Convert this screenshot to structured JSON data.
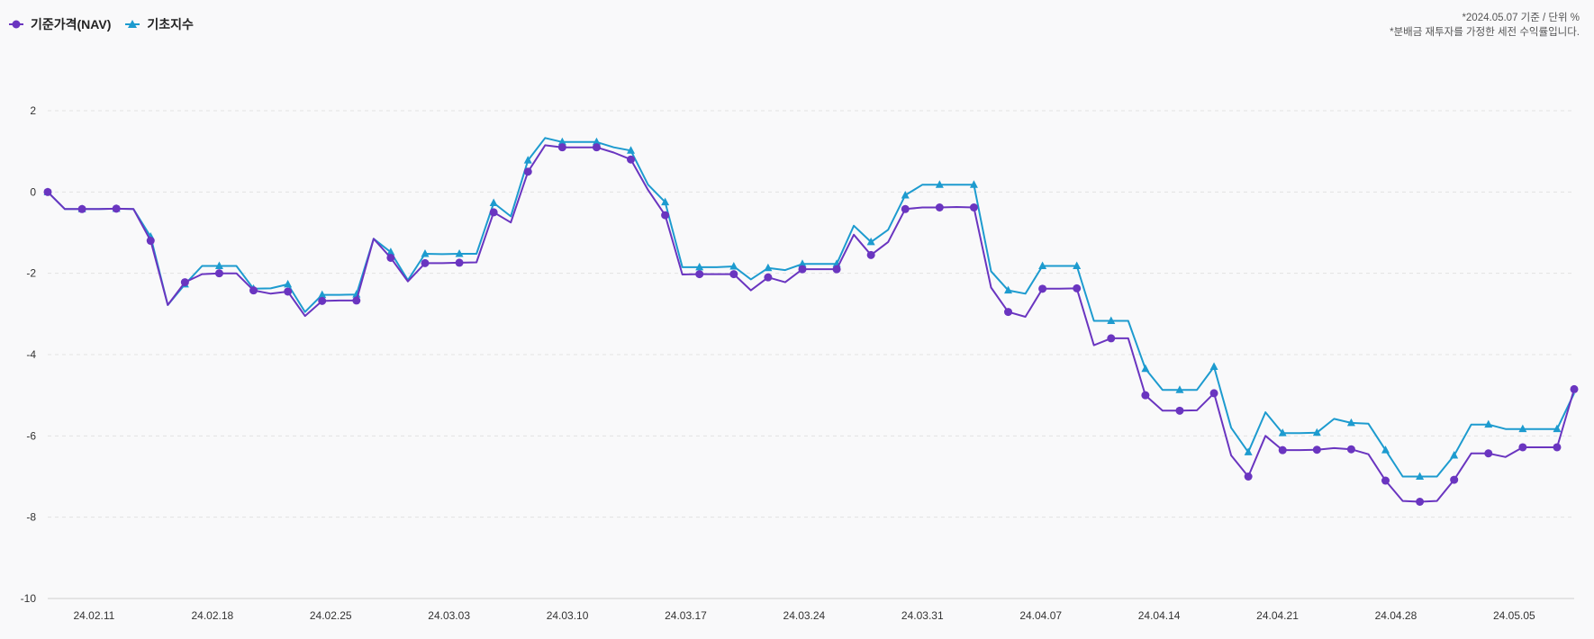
{
  "legend": [
    {
      "name": "기준가격(NAV)",
      "color": "#6a35c0",
      "marker": "circle"
    },
    {
      "name": "기초지수",
      "color": "#1d9bcf",
      "marker": "triangle"
    }
  ],
  "notes": {
    "line1": "*2024.05.07 기준 / 단위 %",
    "line2": "*분배금 재투자를 가정한 세전 수익률입니다."
  },
  "chart_data": {
    "type": "line",
    "title": "",
    "xlabel": "",
    "ylabel": "",
    "ylim": [
      -10,
      2
    ],
    "yticks": [
      2,
      0,
      -2,
      -4,
      -6,
      -8,
      -10
    ],
    "grid": true,
    "legend_position": "top-left",
    "x_start": 0,
    "x_end": 89,
    "xtick_labels": [
      {
        "x": 2.7,
        "label": "24.02.11"
      },
      {
        "x": 9.6,
        "label": "24.02.18"
      },
      {
        "x": 16.5,
        "label": "24.02.25"
      },
      {
        "x": 23.4,
        "label": "24.03.03"
      },
      {
        "x": 30.3,
        "label": "24.03.10"
      },
      {
        "x": 37.2,
        "label": "24.03.17"
      },
      {
        "x": 44.1,
        "label": "24.03.24"
      },
      {
        "x": 51.0,
        "label": "24.03.31"
      },
      {
        "x": 57.9,
        "label": "24.04.07"
      },
      {
        "x": 64.8,
        "label": "24.04.14"
      },
      {
        "x": 71.7,
        "label": "24.04.21"
      },
      {
        "x": 78.6,
        "label": "24.04.28"
      },
      {
        "x": 85.5,
        "label": "24.05.05"
      }
    ],
    "series": [
      {
        "name": "기준가격(NAV)",
        "color": "#6a35c0",
        "marker": "circle",
        "points": [
          [
            0,
            0.0,
            1
          ],
          [
            1,
            -0.42,
            0
          ],
          [
            2,
            -0.42,
            1
          ],
          [
            3,
            -0.42,
            0
          ],
          [
            4,
            -0.41,
            1
          ],
          [
            5,
            -0.42,
            0
          ],
          [
            6,
            -1.2,
            1
          ],
          [
            7,
            -2.78,
            0
          ],
          [
            8,
            -2.22,
            1
          ],
          [
            9,
            -2.02,
            0
          ],
          [
            10,
            -2.0,
            1
          ],
          [
            11,
            -2.0,
            0
          ],
          [
            12,
            -2.42,
            1
          ],
          [
            13,
            -2.5,
            0
          ],
          [
            14,
            -2.45,
            1
          ],
          [
            15,
            -3.05,
            0
          ],
          [
            16,
            -2.68,
            1
          ],
          [
            17,
            -2.67,
            0
          ],
          [
            18,
            -2.67,
            1
          ],
          [
            19,
            -1.15,
            0
          ],
          [
            20,
            -1.62,
            1
          ],
          [
            21,
            -2.2,
            0
          ],
          [
            22,
            -1.75,
            1
          ],
          [
            23,
            -1.75,
            0
          ],
          [
            24,
            -1.74,
            1
          ],
          [
            25,
            -1.73,
            0
          ],
          [
            26,
            -0.5,
            1
          ],
          [
            27,
            -0.75,
            0
          ],
          [
            28,
            0.5,
            1
          ],
          [
            29,
            1.15,
            0
          ],
          [
            30,
            1.1,
            1
          ],
          [
            31,
            1.1,
            0
          ],
          [
            32,
            1.1,
            1
          ],
          [
            33,
            0.97,
            0
          ],
          [
            34,
            0.8,
            1
          ],
          [
            35,
            0.05,
            0
          ],
          [
            36,
            -0.57,
            1
          ],
          [
            37,
            -2.03,
            0
          ],
          [
            38,
            -2.02,
            1
          ],
          [
            39,
            -2.02,
            0
          ],
          [
            40,
            -2.02,
            1
          ],
          [
            41,
            -2.42,
            0
          ],
          [
            42,
            -2.1,
            1
          ],
          [
            43,
            -2.22,
            0
          ],
          [
            44,
            -1.9,
            1
          ],
          [
            45,
            -1.9,
            0
          ],
          [
            46,
            -1.9,
            1
          ],
          [
            47,
            -1.05,
            0
          ],
          [
            48,
            -1.55,
            1
          ],
          [
            49,
            -1.23,
            0
          ],
          [
            50,
            -0.42,
            1
          ],
          [
            51,
            -0.38,
            0
          ],
          [
            52,
            -0.38,
            1
          ],
          [
            53,
            -0.37,
            0
          ],
          [
            54,
            -0.38,
            1
          ],
          [
            55,
            -2.35,
            0
          ],
          [
            56,
            -2.95,
            1
          ],
          [
            57,
            -3.07,
            0
          ],
          [
            58,
            -2.38,
            1
          ],
          [
            59,
            -2.38,
            0
          ],
          [
            60,
            -2.37,
            1
          ],
          [
            61,
            -3.77,
            0
          ],
          [
            62,
            -3.6,
            1
          ],
          [
            63,
            -3.6,
            0
          ],
          [
            64,
            -5.0,
            1
          ],
          [
            65,
            -5.38,
            0
          ],
          [
            66,
            -5.38,
            1
          ],
          [
            67,
            -5.37,
            0
          ],
          [
            68,
            -4.95,
            1
          ],
          [
            69,
            -6.48,
            0
          ],
          [
            70,
            -7.0,
            1
          ],
          [
            71,
            -6.0,
            0
          ],
          [
            72,
            -6.35,
            1
          ],
          [
            73,
            -6.35,
            0
          ],
          [
            74,
            -6.34,
            1
          ],
          [
            75,
            -6.3,
            0
          ],
          [
            76,
            -6.33,
            1
          ],
          [
            77,
            -6.45,
            0
          ],
          [
            78,
            -7.1,
            1
          ],
          [
            79,
            -7.6,
            0
          ],
          [
            80,
            -7.62,
            1
          ],
          [
            81,
            -7.6,
            0
          ],
          [
            82,
            -7.08,
            1
          ],
          [
            83,
            -6.43,
            0
          ],
          [
            84,
            -6.43,
            1
          ],
          [
            85,
            -6.52,
            0
          ],
          [
            86,
            -6.28,
            1
          ],
          [
            87,
            -6.28,
            0
          ],
          [
            88,
            -6.28,
            1
          ],
          [
            89,
            -4.85,
            1
          ]
        ]
      },
      {
        "name": "기초지수",
        "color": "#1d9bcf",
        "marker": "triangle",
        "points": [
          [
            0,
            0.0,
            1
          ],
          [
            1,
            -0.42,
            0
          ],
          [
            2,
            -0.42,
            1
          ],
          [
            3,
            -0.42,
            0
          ],
          [
            4,
            -0.41,
            1
          ],
          [
            5,
            -0.42,
            0
          ],
          [
            6,
            -1.1,
            1
          ],
          [
            7,
            -2.78,
            0
          ],
          [
            8,
            -2.27,
            1
          ],
          [
            9,
            -1.82,
            0
          ],
          [
            10,
            -1.82,
            1
          ],
          [
            11,
            -1.82,
            0
          ],
          [
            12,
            -2.38,
            1
          ],
          [
            13,
            -2.37,
            0
          ],
          [
            14,
            -2.27,
            1
          ],
          [
            15,
            -2.95,
            0
          ],
          [
            16,
            -2.53,
            1
          ],
          [
            17,
            -2.53,
            0
          ],
          [
            18,
            -2.52,
            1
          ],
          [
            19,
            -1.15,
            0
          ],
          [
            20,
            -1.48,
            1
          ],
          [
            21,
            -2.17,
            0
          ],
          [
            22,
            -1.52,
            1
          ],
          [
            23,
            -1.53,
            0
          ],
          [
            24,
            -1.52,
            1
          ],
          [
            25,
            -1.52,
            0
          ],
          [
            26,
            -0.27,
            1
          ],
          [
            27,
            -0.6,
            0
          ],
          [
            28,
            0.78,
            1
          ],
          [
            29,
            1.33,
            0
          ],
          [
            30,
            1.23,
            1
          ],
          [
            31,
            1.23,
            0
          ],
          [
            32,
            1.23,
            1
          ],
          [
            33,
            1.1,
            0
          ],
          [
            34,
            1.02,
            1
          ],
          [
            35,
            0.18,
            0
          ],
          [
            36,
            -0.25,
            1
          ],
          [
            37,
            -1.85,
            0
          ],
          [
            38,
            -1.85,
            1
          ],
          [
            39,
            -1.85,
            0
          ],
          [
            40,
            -1.83,
            1
          ],
          [
            41,
            -2.15,
            0
          ],
          [
            42,
            -1.87,
            1
          ],
          [
            43,
            -1.92,
            0
          ],
          [
            44,
            -1.77,
            1
          ],
          [
            45,
            -1.77,
            0
          ],
          [
            46,
            -1.77,
            1
          ],
          [
            47,
            -0.83,
            0
          ],
          [
            48,
            -1.23,
            1
          ],
          [
            49,
            -0.93,
            0
          ],
          [
            50,
            -0.08,
            1
          ],
          [
            51,
            0.18,
            0
          ],
          [
            52,
            0.18,
            1
          ],
          [
            53,
            0.18,
            0
          ],
          [
            54,
            0.18,
            1
          ],
          [
            55,
            -1.95,
            0
          ],
          [
            56,
            -2.42,
            1
          ],
          [
            57,
            -2.5,
            0
          ],
          [
            58,
            -1.82,
            1
          ],
          [
            59,
            -1.82,
            0
          ],
          [
            60,
            -1.82,
            1
          ],
          [
            61,
            -3.17,
            0
          ],
          [
            62,
            -3.17,
            1
          ],
          [
            63,
            -3.17,
            0
          ],
          [
            64,
            -4.35,
            1
          ],
          [
            65,
            -4.87,
            0
          ],
          [
            66,
            -4.87,
            1
          ],
          [
            67,
            -4.87,
            0
          ],
          [
            68,
            -4.3,
            1
          ],
          [
            69,
            -5.8,
            0
          ],
          [
            70,
            -6.4,
            1
          ],
          [
            71,
            -5.42,
            0
          ],
          [
            72,
            -5.93,
            1
          ],
          [
            73,
            -5.93,
            0
          ],
          [
            74,
            -5.92,
            1
          ],
          [
            75,
            -5.58,
            0
          ],
          [
            76,
            -5.68,
            1
          ],
          [
            77,
            -5.7,
            0
          ],
          [
            78,
            -6.35,
            1
          ],
          [
            79,
            -7.0,
            0
          ],
          [
            80,
            -7.0,
            1
          ],
          [
            81,
            -7.0,
            0
          ],
          [
            82,
            -6.48,
            1
          ],
          [
            83,
            -5.72,
            0
          ],
          [
            84,
            -5.72,
            1
          ],
          [
            85,
            -5.83,
            0
          ],
          [
            86,
            -5.83,
            1
          ],
          [
            87,
            -5.83,
            0
          ],
          [
            88,
            -5.83,
            1
          ],
          [
            89,
            -4.95,
            0
          ]
        ]
      }
    ]
  }
}
